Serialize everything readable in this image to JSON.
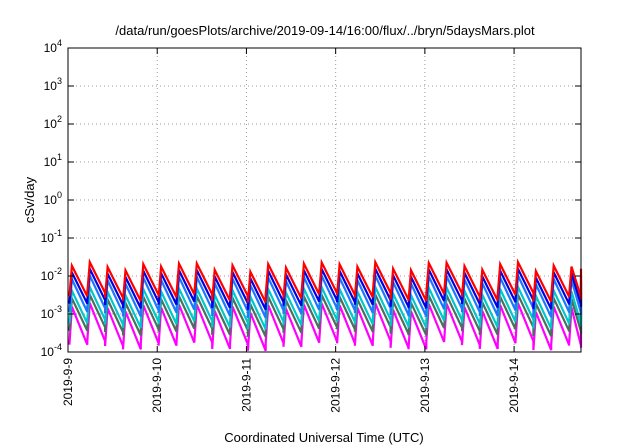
{
  "chart_data": {
    "type": "line",
    "title": "/data/run/goesPlots/archive/2019-09-14/16:00/flux/../bryn/5daysMars.plot",
    "xlabel": "Coordinated Universal Time (UTC)",
    "ylabel": "cSv/day",
    "yscale": "log",
    "ylim": [
      0.0001,
      10000
    ],
    "yticks": [
      {
        "value": 0.0001,
        "base": "10",
        "exp": "-4"
      },
      {
        "value": 0.001,
        "base": "10",
        "exp": "-3"
      },
      {
        "value": 0.01,
        "base": "10",
        "exp": "-2"
      },
      {
        "value": 0.1,
        "base": "10",
        "exp": "-1"
      },
      {
        "value": 1,
        "base": "10",
        "exp": "0"
      },
      {
        "value": 10,
        "base": "10",
        "exp": "1"
      },
      {
        "value": 100,
        "base": "10",
        "exp": "2"
      },
      {
        "value": 1000,
        "base": "10",
        "exp": "3"
      },
      {
        "value": 10000,
        "base": "10",
        "exp": "4"
      }
    ],
    "xlim": [
      "2019-09-09",
      "2019-09-14T18:00"
    ],
    "xticks": [
      "2019-9-9",
      "2019-9-10",
      "2019-9-11",
      "2019-9-12",
      "2019-9-13",
      "2019-9-14"
    ],
    "grid": true,
    "cycles_per_day": 5,
    "series": [
      {
        "color": "#ff00ff",
        "peak": 0.0015,
        "trough": 0.00015
      },
      {
        "color": "#4b6e5e",
        "peak": 0.0025,
        "trough": 0.00035
      },
      {
        "color": "#00c8c8",
        "peak": 0.004,
        "trough": 0.00055
      },
      {
        "color": "#1e78ff",
        "peak": 0.008,
        "trough": 0.0011
      },
      {
        "color": "#0000e0",
        "peak": 0.012,
        "trough": 0.0018
      },
      {
        "color": "#ff0000",
        "peak": 0.018,
        "trough": 0.0028
      }
    ]
  }
}
